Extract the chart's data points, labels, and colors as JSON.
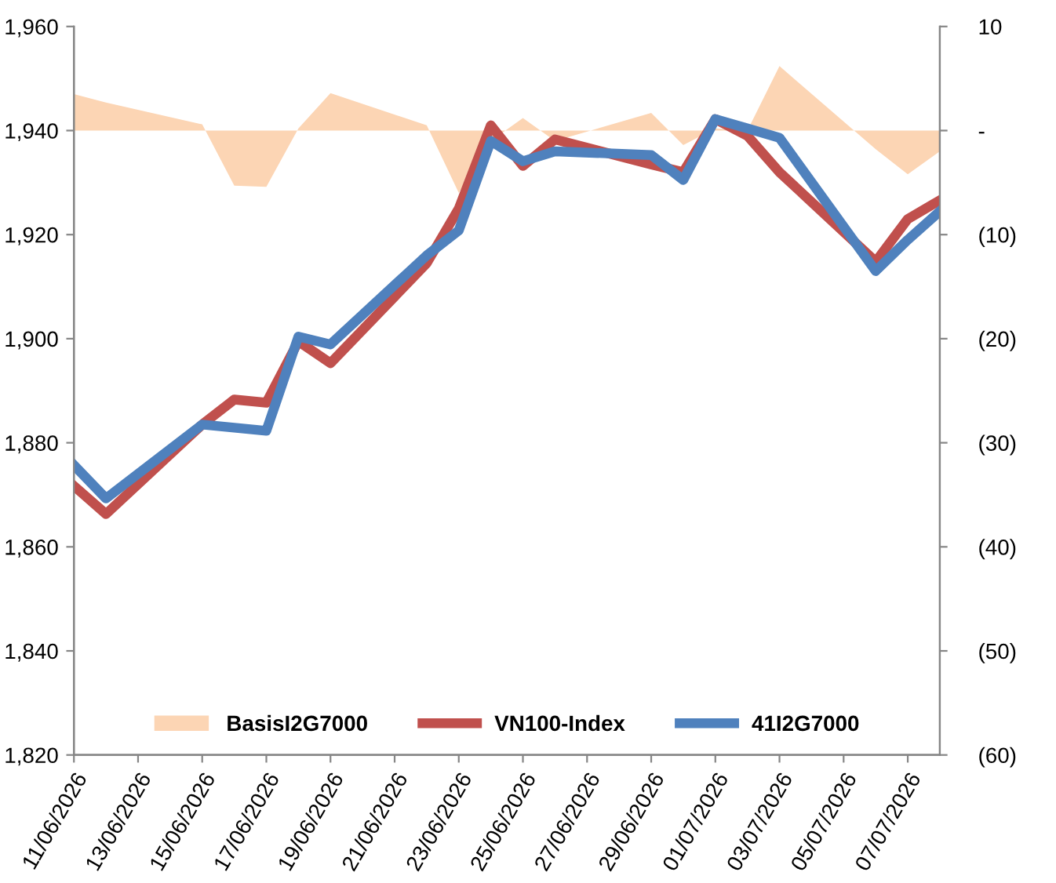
{
  "chart_data": {
    "type": "line",
    "x": [
      "2026-06-11",
      "2026-06-12",
      "2026-06-15",
      "2026-06-16",
      "2026-06-17",
      "2026-06-18",
      "2026-06-19",
      "2026-06-22",
      "2026-06-23",
      "2026-06-24",
      "2026-06-25",
      "2026-06-26",
      "2026-06-29",
      "2026-06-30",
      "2026-07-01",
      "2026-07-02",
      "2026-07-03",
      "2026-07-06",
      "2026-07-07",
      "2026-07-08"
    ],
    "series": [
      {
        "name": "BasisI2G7000",
        "type": "area",
        "axis": "y2",
        "color": "#fcd5b4",
        "values": [
          3.5,
          2.7,
          0.6,
          -5.3,
          -5.4,
          0.2,
          3.6,
          0.5,
          -6.0,
          -1.0,
          1.2,
          -1.0,
          1.7,
          -1.4,
          0.2,
          0.0,
          6.2,
          -1.8,
          -4.2,
          -2.0
        ]
      },
      {
        "name": "VN100-Index",
        "color": "#c0504d",
        "values": [
          1871.7,
          1866.3,
          1883.5,
          1888.3,
          1887.7,
          1899.5,
          1895.3,
          1914.5,
          1925.0,
          1941.0,
          1933.2,
          1938.3,
          1933.5,
          1932.0,
          1942.2,
          1939.0,
          1932.0,
          1914.8,
          1923.0,
          1926.6
        ]
      },
      {
        "name": "41I2G7000",
        "color": "#4f81bd",
        "values": [
          1875.7,
          1869.3,
          1883.5,
          1882.9,
          1882.3,
          1900.4,
          1898.9,
          1916.0,
          1920.8,
          1938.0,
          1934.1,
          1936.0,
          1935.3,
          1930.5,
          1942.2,
          1940.4,
          1938.6,
          1913.0,
          1919.0,
          1924.5
        ]
      }
    ],
    "xlim": [
      "2026-06-11",
      "2026-07-08"
    ],
    "xticks": [
      {
        "value": "2026-06-11",
        "label": "11/06/2026"
      },
      {
        "value": "2026-06-13",
        "label": "13/06/2026"
      },
      {
        "value": "2026-06-15",
        "label": "15/06/2026"
      },
      {
        "value": "2026-06-17",
        "label": "17/06/2026"
      },
      {
        "value": "2026-06-19",
        "label": "19/06/2026"
      },
      {
        "value": "2026-06-21",
        "label": "21/06/2026"
      },
      {
        "value": "2026-06-23",
        "label": "23/06/2026"
      },
      {
        "value": "2026-06-25",
        "label": "25/06/2026"
      },
      {
        "value": "2026-06-27",
        "label": "27/06/2026"
      },
      {
        "value": "2026-06-29",
        "label": "29/06/2026"
      },
      {
        "value": "2026-07-01",
        "label": "01/07/2026"
      },
      {
        "value": "2026-07-03",
        "label": "03/07/2026"
      },
      {
        "value": "2026-07-05",
        "label": "05/07/2026"
      },
      {
        "value": "2026-07-07",
        "label": "07/07/2026"
      }
    ],
    "ylim": [
      1820,
      1960
    ],
    "yticks": [
      {
        "value": 1820,
        "label": "1,820"
      },
      {
        "value": 1840,
        "label": "1,840"
      },
      {
        "value": 1860,
        "label": "1,860"
      },
      {
        "value": 1880,
        "label": "1,880"
      },
      {
        "value": 1900,
        "label": "1,900"
      },
      {
        "value": 1920,
        "label": "1,920"
      },
      {
        "value": 1940,
        "label": "1,940"
      },
      {
        "value": 1960,
        "label": "1,960"
      }
    ],
    "y2lim": [
      -60,
      10
    ],
    "y2ticks": [
      {
        "value": -60,
        "label": "(60)"
      },
      {
        "value": -50,
        "label": "(50)"
      },
      {
        "value": -40,
        "label": "(40)"
      },
      {
        "value": -30,
        "label": "(30)"
      },
      {
        "value": -20,
        "label": "(20)"
      },
      {
        "value": -10,
        "label": "(10)"
      },
      {
        "value": 0,
        "label": "-"
      },
      10
    ],
    "grid": false,
    "legend": "bottom"
  }
}
